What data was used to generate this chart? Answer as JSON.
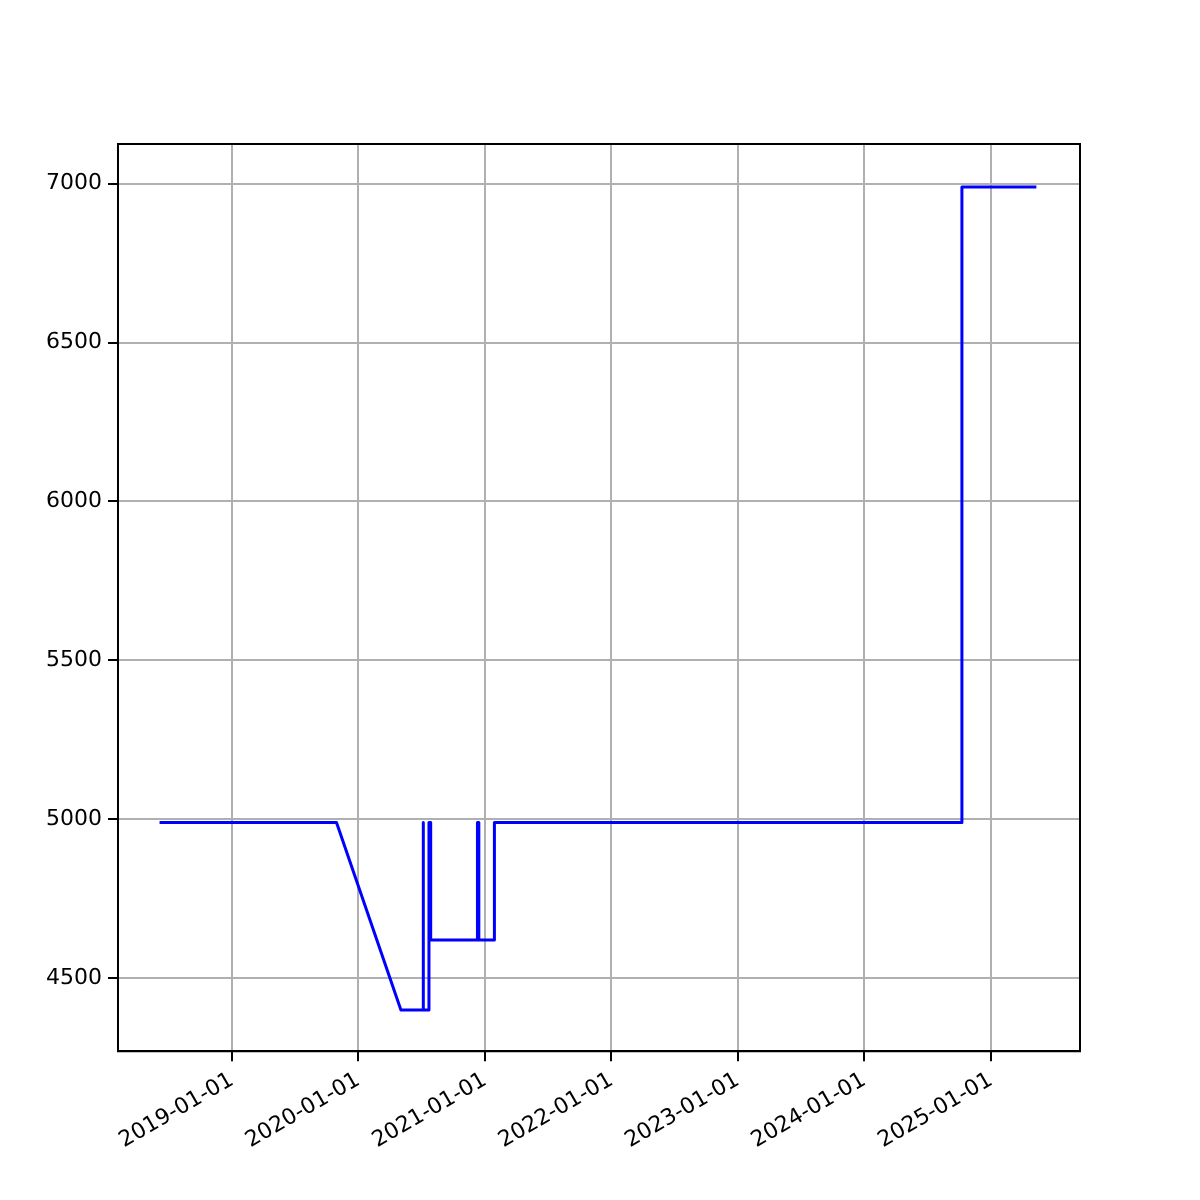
{
  "chart_data": {
    "type": "line",
    "x": [
      "2018-06-06",
      "2019-10-30",
      "2020-05-03",
      "2020-07-04",
      "2020-07-04",
      "2020-07-08",
      "2020-07-08",
      "2020-07-23",
      "2020-07-23",
      "2020-07-28",
      "2020-07-28",
      "2020-12-10",
      "2020-12-10",
      "2020-12-14",
      "2020-12-14",
      "2021-01-28",
      "2021-01-28",
      "2024-10-09",
      "2024-10-09",
      "2025-05-12"
    ],
    "series": [
      {
        "color": "#0000ff",
        "values": [
          4990,
          4990,
          4400,
          4400,
          4990,
          4990,
          4400,
          4400,
          4990,
          4990,
          4620,
          4620,
          4990,
          4990,
          4620,
          4620,
          4990,
          4990,
          6990,
          6990
        ]
      }
    ],
    "xlim": [
      "2018-02-06",
      "2025-09-15"
    ],
    "xticks": [
      "2019-01-01",
      "2020-01-01",
      "2021-01-01",
      "2022-01-01",
      "2023-01-01",
      "2024-01-01",
      "2025-01-01"
    ],
    "ylim": [
      4270,
      7125
    ],
    "yticks": [
      4500,
      5000,
      5500,
      6000,
      6500,
      7000
    ],
    "grid": true,
    "legend": false,
    "marker": "none",
    "line_style": "solid"
  }
}
